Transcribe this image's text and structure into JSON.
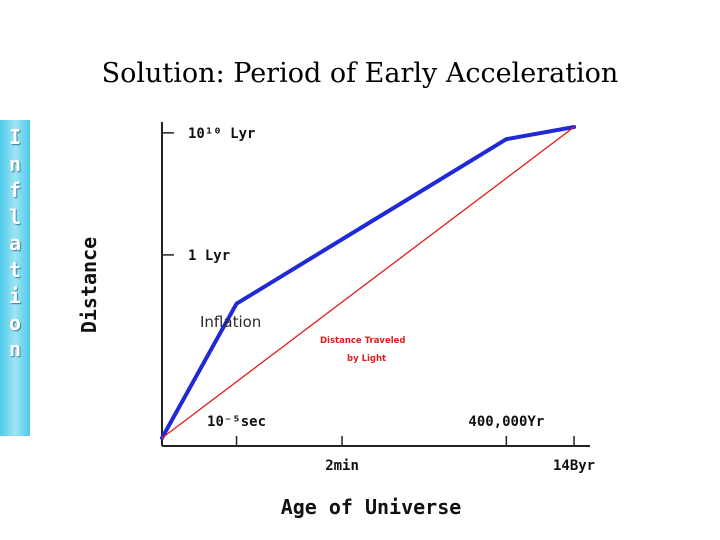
{
  "slide": {
    "title": "Solution: Period of Early Acceleration",
    "side_word": [
      "I",
      "n",
      "f",
      "l",
      "a",
      "t",
      "i",
      "o",
      "n"
    ]
  },
  "colors": {
    "universe": "#1f29d6",
    "light": "#e21b1b",
    "side_bar": "#4cc9ea",
    "axis": "#222222"
  },
  "chart_data": {
    "type": "line",
    "title": "",
    "xlabel": "Age of Universe",
    "ylabel": "Distance",
    "x_scale": "log",
    "y_scale": "log",
    "x_ticks": [
      {
        "label": "10⁻⁵sec",
        "pos": "upper",
        "x": 1e-05
      },
      {
        "label": "2min",
        "pos": "lower",
        "x": 120
      },
      {
        "label": "400,000Yr",
        "pos": "upper",
        "x": 12600000000000
      },
      {
        "label": "14Byr",
        "pos": "lower",
        "x": 440000000000000000
      }
    ],
    "y_ticks": [
      {
        "label": "10¹⁰ Lyr",
        "y": 10000000000
      },
      {
        "label": "1 Lyr",
        "y": 1
      }
    ],
    "series": [
      {
        "role": "universe",
        "points": [
          {
            "x": 1e-10,
            "y": 1e-15
          },
          {
            "x": 1e-05,
            "y": 0.0001
          },
          {
            "x": 12600000000000,
            "y": 3000000000.0
          },
          {
            "x": 440000000000000000,
            "y": 30000000000.0
          }
        ]
      },
      {
        "role": "light",
        "points": [
          {
            "x": 1e-10,
            "y": 1e-15
          },
          {
            "x": 440000000000000000,
            "y": 30000000000.0
          }
        ]
      }
    ],
    "annotations": [
      {
        "text": "Inflation",
        "style": "inflation",
        "anchor": "inflation"
      },
      {
        "text": "Distance Traveled",
        "style": "red",
        "anchor": "light1"
      },
      {
        "text": "by Light",
        "style": "red",
        "anchor": "light2"
      }
    ]
  }
}
